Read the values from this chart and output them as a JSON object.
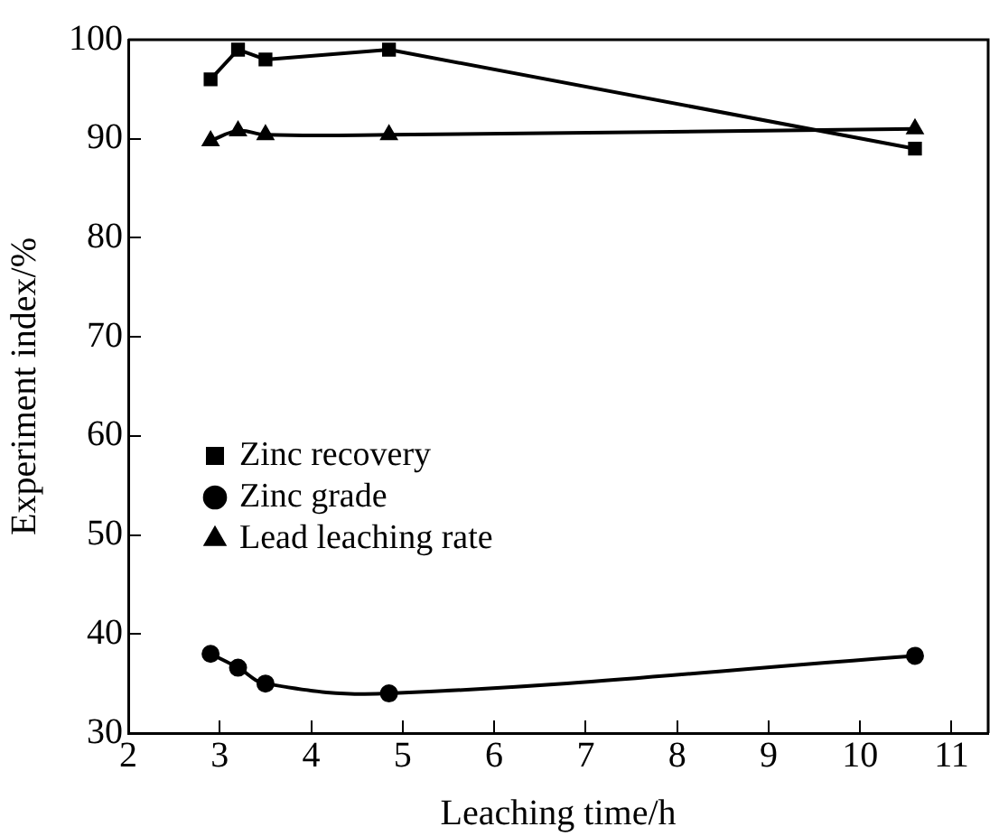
{
  "chart_data": {
    "type": "line",
    "xlabel": "Leaching time/h",
    "ylabel": "Experiment index/%",
    "xlim": [
      2,
      11.4
    ],
    "xticks": [
      2,
      3,
      4,
      5,
      6,
      7,
      8,
      9,
      10,
      11
    ],
    "ylim": [
      30,
      100
    ],
    "yticks": [
      30,
      40,
      50,
      60,
      70,
      80,
      90,
      100
    ],
    "grid": false,
    "legend": "left",
    "line_style": "solid",
    "series": [
      {
        "name": "Zinc recovery",
        "color": "#000000",
        "marker": "square",
        "x": [
          2.9,
          3.2,
          3.5,
          4.85,
          10.6
        ],
        "values": [
          96,
          99,
          98,
          99,
          89
        ]
      },
      {
        "name": "Zinc grade",
        "color": "#000000",
        "marker": "circle",
        "x": [
          2.9,
          3.2,
          3.5,
          4.85,
          10.6
        ],
        "values": [
          38,
          36.6,
          35,
          34,
          37.8
        ]
      },
      {
        "name": "Lead leaching rate",
        "color": "#000000",
        "marker": "triangle",
        "x": [
          2.9,
          3.2,
          3.5,
          4.85,
          10.6
        ],
        "values": [
          89.8,
          90.8,
          90.4,
          90.4,
          91
        ]
      }
    ]
  }
}
